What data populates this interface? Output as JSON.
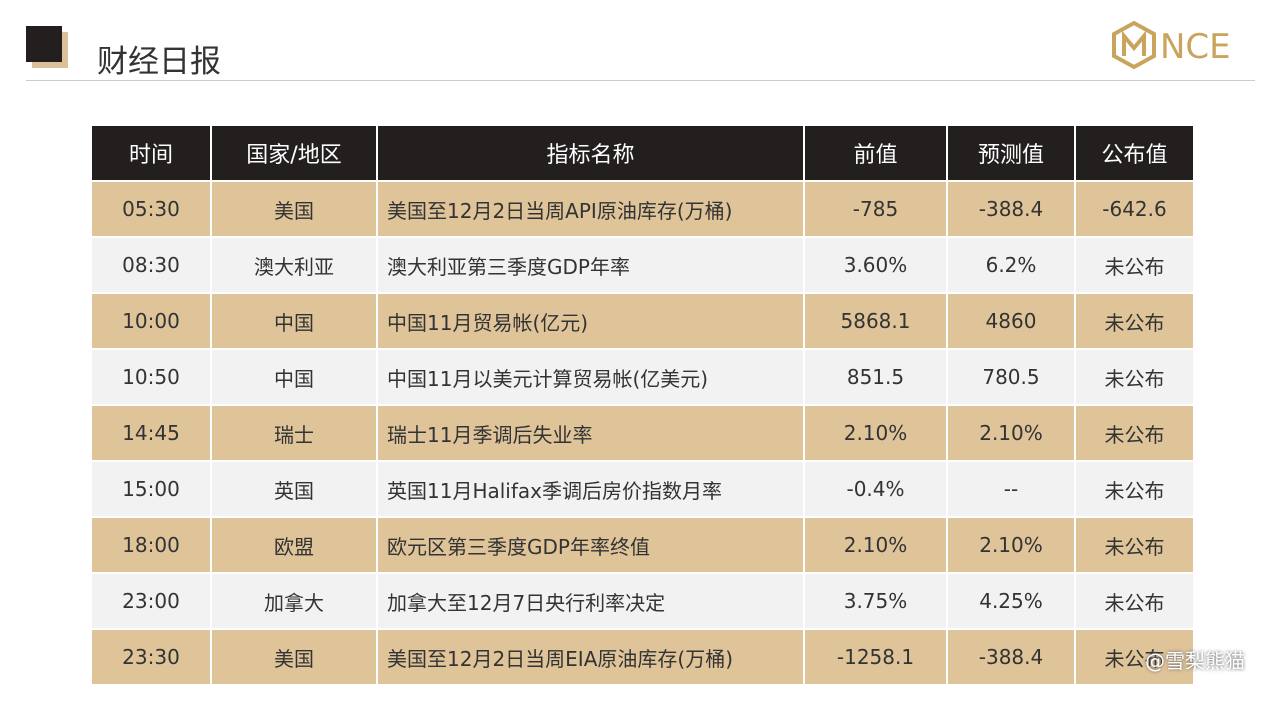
{
  "header": {
    "title": "财经日报",
    "logo": "NCE"
  },
  "table": {
    "columns": [
      "时间",
      "国家/地区",
      "指标名称",
      "前值",
      "预测值",
      "公布值"
    ],
    "rows": [
      [
        "05:30",
        "美国",
        "美国至12月2日当周API原油库存(万桶)",
        "-785",
        "-388.4",
        "-642.6"
      ],
      [
        "08:30",
        "澳大利亚",
        "澳大利亚第三季度GDP年率",
        "3.60%",
        "6.2%",
        "未公布"
      ],
      [
        "10:00",
        "中国",
        "中国11月贸易帐(亿元)",
        "5868.1",
        "4860",
        "未公布"
      ],
      [
        "10:50",
        "中国",
        "中国11月以美元计算贸易帐(亿美元)",
        "851.5",
        "780.5",
        "未公布"
      ],
      [
        "14:45",
        "瑞士",
        "瑞士11月季调后失业率",
        "2.10%",
        "2.10%",
        "未公布"
      ],
      [
        "15:00",
        "英国",
        "英国11月Halifax季调后房价指数月率",
        "-0.4%",
        "--",
        "未公布"
      ],
      [
        "18:00",
        "欧盟",
        "欧元区第三季度GDP年率终值",
        "2.10%",
        "2.10%",
        "未公布"
      ],
      [
        "23:00",
        "加拿大",
        "加拿大至12月7日央行利率决定",
        "3.75%",
        "4.25%",
        "未公布"
      ],
      [
        "23:30",
        "美国",
        "美国至12月2日当周EIA原油库存(万桶)",
        "-1258.1",
        "-388.4",
        "未公布"
      ]
    ]
  },
  "watermark": "@雪梨熊猫"
}
